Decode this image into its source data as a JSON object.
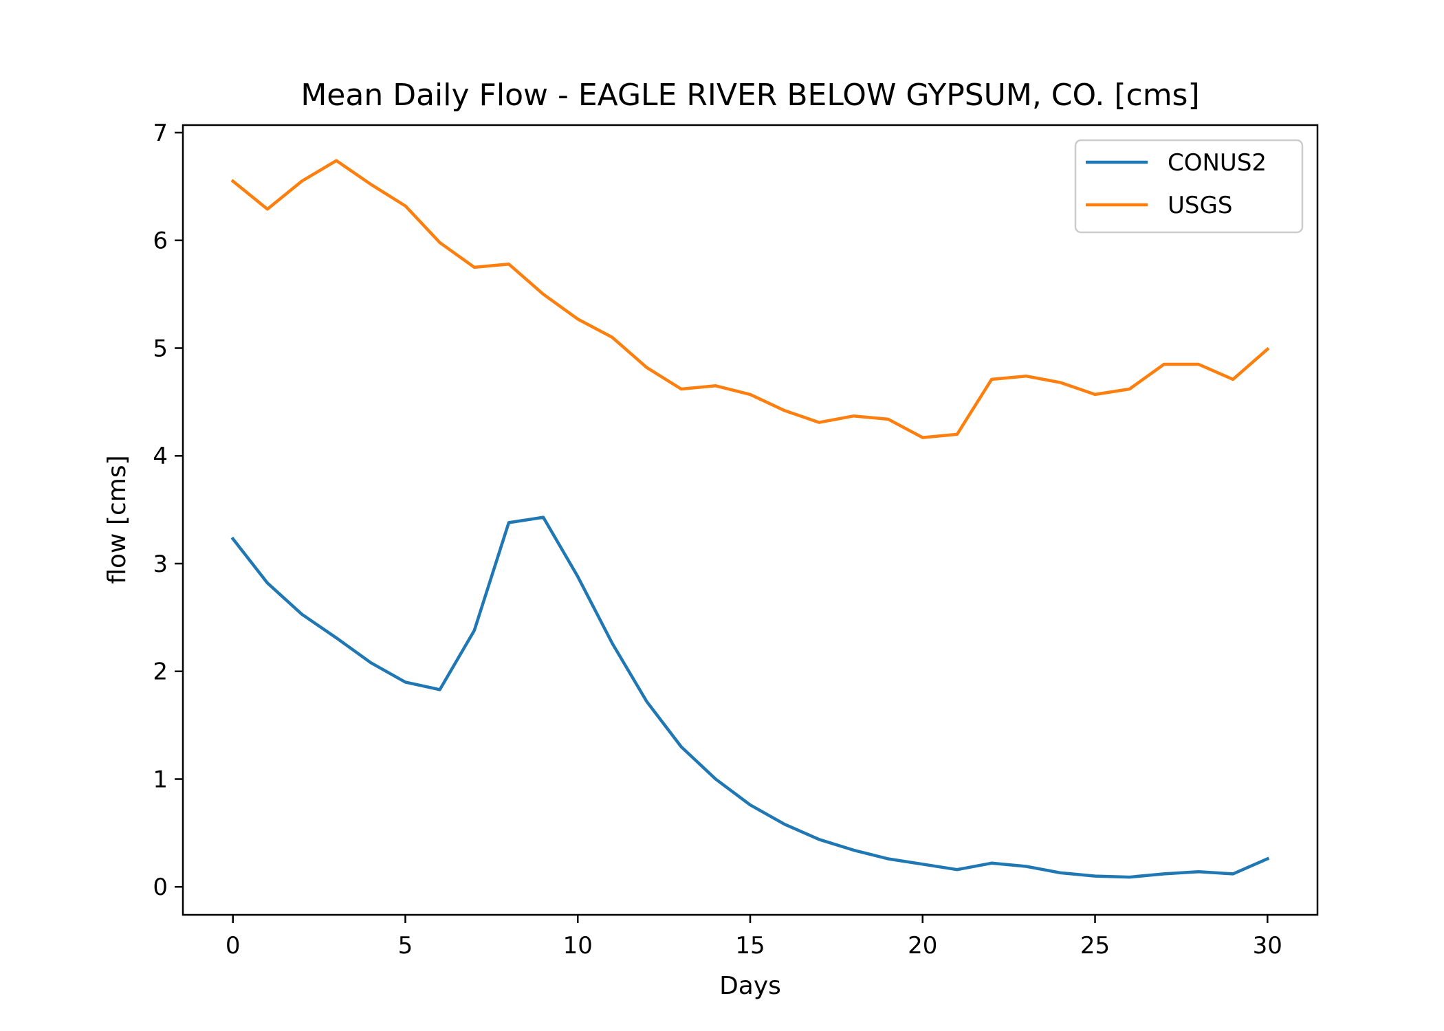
{
  "chart_data": {
    "type": "line",
    "title": "Mean Daily Flow - EAGLE RIVER BELOW GYPSUM, CO. [cms]",
    "xlabel": "Days",
    "ylabel": "flow [cms]",
    "xlim": [
      -1.45,
      31.45
    ],
    "ylim": [
      -0.26,
      7.07
    ],
    "xticks": [
      0,
      5,
      10,
      15,
      20,
      25,
      30
    ],
    "xtick_labels": [
      "0",
      "5",
      "10",
      "15",
      "20",
      "25",
      "30"
    ],
    "yticks": [
      0,
      1,
      2,
      3,
      4,
      5,
      6,
      7
    ],
    "ytick_labels": [
      "0",
      "1",
      "2",
      "3",
      "4",
      "5",
      "6",
      "7"
    ],
    "grid": false,
    "legend_position": "top-right",
    "x": [
      0,
      1,
      2,
      3,
      4,
      5,
      6,
      7,
      8,
      9,
      10,
      11,
      12,
      13,
      14,
      15,
      16,
      17,
      18,
      19,
      20,
      21,
      22,
      23,
      24,
      25,
      26,
      27,
      28,
      29,
      30
    ],
    "series": [
      {
        "name": "CONUS2",
        "color": "#1f77b4",
        "values": [
          3.23,
          2.82,
          2.53,
          2.31,
          2.08,
          1.9,
          1.83,
          2.38,
          3.38,
          3.43,
          2.88,
          2.26,
          1.72,
          1.3,
          1.0,
          0.76,
          0.58,
          0.44,
          0.34,
          0.26,
          0.21,
          0.16,
          0.22,
          0.19,
          0.13,
          0.1,
          0.09,
          0.12,
          0.14,
          0.12,
          0.26
        ]
      },
      {
        "name": "USGS",
        "color": "#ff7f0e",
        "values": [
          6.55,
          6.29,
          6.55,
          6.74,
          6.52,
          6.32,
          5.98,
          5.75,
          5.78,
          5.5,
          5.27,
          5.1,
          4.82,
          4.62,
          4.65,
          4.57,
          4.42,
          4.31,
          4.37,
          4.34,
          4.17,
          4.2,
          4.71,
          4.74,
          4.68,
          4.57,
          4.62,
          4.85,
          4.85,
          4.71,
          4.99
        ]
      }
    ]
  }
}
